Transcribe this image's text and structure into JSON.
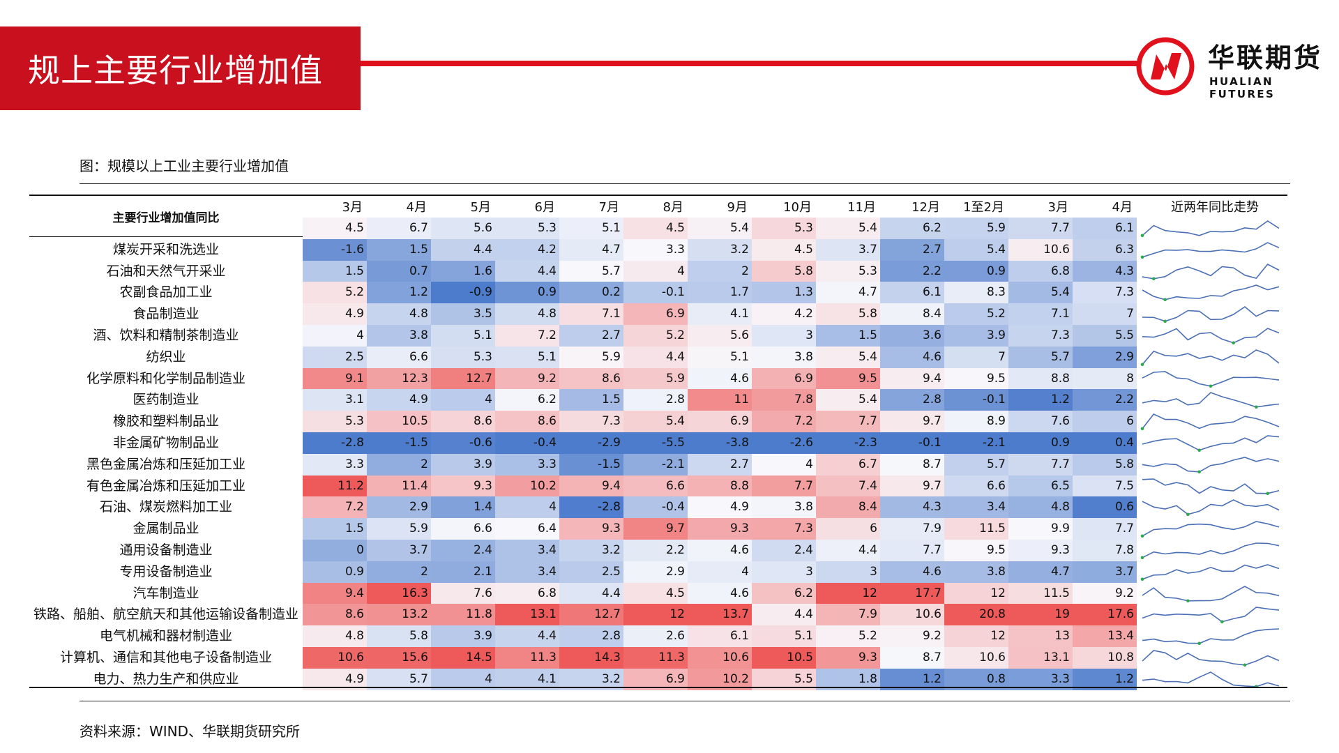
{
  "page": {
    "title": "规上主要行业增加值",
    "logo_cn": "华联期货",
    "logo_en": "HUALIAN FUTURES",
    "figure_caption": "图：规模以上工业主要行业增加值",
    "source": "资料来源：WIND、华联期货研究所",
    "brand_red": "#c8101e"
  },
  "table": {
    "header_label": "主要行业增加值同比",
    "trend_header": "近两年同比走势",
    "months": [
      "3月",
      "4月",
      "5月",
      "6月",
      "7月",
      "8月",
      "9月",
      "10月",
      "11月",
      "12月",
      "1至2月",
      "3月",
      "4月"
    ],
    "rows": [
      {
        "label": "",
        "values": [
          4.5,
          6.7,
          5.6,
          5.3,
          5.1,
          4.5,
          5.4,
          5.3,
          5.4,
          6.2,
          5.9,
          7.7,
          6.1
        ]
      },
      {
        "label": "煤炭开采和洗选业",
        "values": [
          -1.6,
          1.5,
          4.4,
          4.2,
          4.7,
          3.3,
          3.2,
          4.5,
          3.7,
          2.7,
          5.4,
          10.6,
          6.3
        ]
      },
      {
        "label": "石油和天然气开采业",
        "values": [
          1.5,
          0.7,
          1.6,
          4.4,
          5.7,
          4,
          2,
          5.8,
          5.3,
          2.2,
          0.9,
          6.8,
          4.3
        ]
      },
      {
        "label": "农副食品加工业",
        "values": [
          5.2,
          1.2,
          -0.9,
          0.9,
          0.2,
          -0.1,
          1.7,
          1.3,
          4.7,
          6.1,
          8.3,
          5.4,
          7.3
        ]
      },
      {
        "label": "食品制造业",
        "values": [
          4.9,
          4.8,
          3.5,
          4.8,
          7.1,
          6.9,
          4.1,
          4.2,
          5.8,
          8.4,
          5.2,
          7.1,
          7
        ]
      },
      {
        "label": "酒、饮料和精制茶制造业",
        "values": [
          4,
          3.8,
          5.1,
          7.2,
          2.7,
          5.2,
          5.6,
          3,
          1.5,
          3.6,
          3.9,
          7.3,
          5.5
        ]
      },
      {
        "label": "纺织业",
        "values": [
          2.5,
          6.6,
          5.3,
          5.1,
          5.9,
          4.4,
          5.1,
          3.8,
          5.4,
          4.6,
          7,
          5.7,
          2.9
        ]
      },
      {
        "label": "化学原料和化学制品制造业",
        "values": [
          9.1,
          12.3,
          12.7,
          9.2,
          8.6,
          5.9,
          4.6,
          6.9,
          9.5,
          9.4,
          9.5,
          8.8,
          8
        ]
      },
      {
        "label": "医药制造业",
        "values": [
          3.1,
          4.9,
          4,
          6.2,
          1.5,
          2.8,
          11,
          7.8,
          5.4,
          2.8,
          -0.1,
          1.2,
          2.2
        ]
      },
      {
        "label": "橡胶和塑料制品业",
        "values": [
          5.3,
          10.5,
          8.6,
          8.6,
          7.3,
          5.4,
          6.9,
          7.2,
          7.7,
          9.7,
          8.9,
          7.6,
          6
        ]
      },
      {
        "label": "非金属矿物制品业",
        "values": [
          -2.8,
          -1.5,
          -0.6,
          -0.4,
          -2.9,
          -5.5,
          -3.8,
          -2.6,
          -2.3,
          -0.1,
          -2.1,
          0.9,
          0.4
        ]
      },
      {
        "label": "黑色金属冶炼和压延加工业",
        "values": [
          3.3,
          2,
          3.9,
          3.3,
          -1.5,
          -2.1,
          2.7,
          4,
          6.7,
          8.7,
          5.7,
          7.7,
          5.8
        ]
      },
      {
        "label": "有色金属冶炼和压延加工业",
        "values": [
          11.2,
          11.4,
          9.3,
          10.2,
          9.4,
          6.6,
          8.8,
          7.7,
          7.4,
          9.7,
          6.6,
          6.5,
          7.5
        ]
      },
      {
        "label": "石油、煤炭燃料加工业",
        "values": [
          7.2,
          2.9,
          1.4,
          4,
          -2.8,
          -0.4,
          4.9,
          3.8,
          8.4,
          4.3,
          3.4,
          4.8,
          0.6
        ]
      },
      {
        "label": "金属制品业",
        "values": [
          1.5,
          5.9,
          6.6,
          6.4,
          9.3,
          9.7,
          9.3,
          7.3,
          6,
          7.9,
          11.5,
          9.9,
          7.7
        ]
      },
      {
        "label": "通用设备制造业",
        "values": [
          0,
          3.7,
          2.4,
          3.4,
          3.2,
          2.2,
          4.6,
          2.4,
          4.4,
          7.7,
          9.5,
          9.3,
          7.8
        ]
      },
      {
        "label": "专用设备制造业",
        "values": [
          0.9,
          2,
          2.1,
          3.4,
          2.5,
          2.9,
          4,
          3,
          3,
          4.6,
          3.8,
          4.7,
          3.7
        ]
      },
      {
        "label": "汽车制造业",
        "values": [
          9.4,
          16.3,
          7.6,
          6.8,
          4.4,
          4.5,
          4.6,
          6.2,
          12,
          17.7,
          12,
          11.5,
          9.2
        ]
      },
      {
        "label": "铁路、船舶、航空航天和其他运输设备制造业",
        "values": [
          8.6,
          13.2,
          11.8,
          13.1,
          12.7,
          12,
          13.7,
          4.4,
          7.9,
          10.6,
          20.8,
          19,
          17.6
        ]
      },
      {
        "label": "电气机械和器材制造业",
        "values": [
          4.8,
          5.8,
          3.9,
          4.4,
          2.8,
          2.6,
          6.1,
          5.1,
          5.2,
          9.2,
          12,
          13,
          13.4
        ]
      },
      {
        "label": "计算机、通信和其他电子设备制造业",
        "values": [
          10.6,
          15.6,
          14.5,
          11.3,
          14.3,
          11.3,
          10.6,
          10.5,
          9.3,
          8.7,
          10.6,
          13.1,
          10.8
        ]
      },
      {
        "label": "电力、热力生产和供应业",
        "values": [
          4.9,
          5.7,
          4,
          4.1,
          3.2,
          6.9,
          10.2,
          5.5,
          1.8,
          1.2,
          0.8,
          3.3,
          1.2
        ]
      }
    ]
  }
}
